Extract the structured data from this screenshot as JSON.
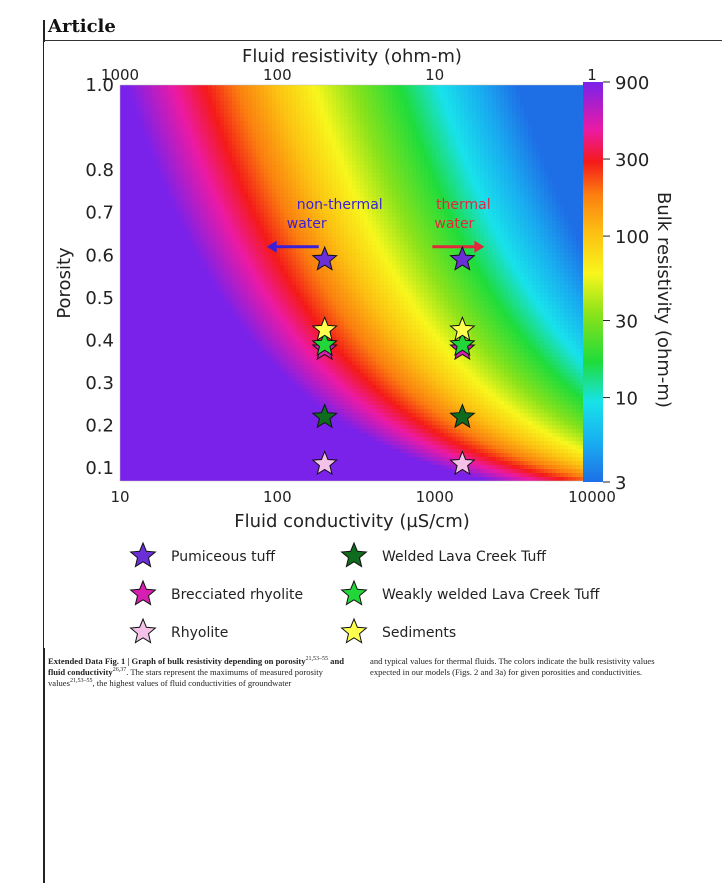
{
  "header": {
    "section": "Article"
  },
  "chart_data": {
    "type": "heatmap",
    "title": "",
    "x_axis": {
      "label": "Fluid conductivity (µS/cm)",
      "scale": "log",
      "range": [
        10,
        10000
      ],
      "ticks": [
        {
          "value": 10,
          "label": "10"
        },
        {
          "value": 100,
          "label": "100"
        },
        {
          "value": 1000,
          "label": "1000"
        },
        {
          "value": 10000,
          "label": "10000"
        }
      ]
    },
    "x_axis_top": {
      "label": "Fluid resistivity (ohm-m)",
      "scale": "log",
      "ticks": [
        {
          "value": 1000,
          "label": "1000"
        },
        {
          "value": 100,
          "label": "100"
        },
        {
          "value": 10,
          "label": "10"
        },
        {
          "value": 1,
          "label": "1"
        }
      ]
    },
    "y_axis": {
      "label": "Porosity",
      "range": [
        0.07,
        1.0
      ],
      "ticks": [
        {
          "value": 1.0,
          "label": "1.0"
        },
        {
          "value": 0.8,
          "label": "0.8"
        },
        {
          "value": 0.7,
          "label": "0.7"
        },
        {
          "value": 0.6,
          "label": "0.6"
        },
        {
          "value": 0.5,
          "label": "0.5"
        },
        {
          "value": 0.4,
          "label": "0.4"
        },
        {
          "value": 0.3,
          "label": "0.3"
        },
        {
          "value": 0.2,
          "label": "0.2"
        },
        {
          "value": 0.1,
          "label": "0.1"
        }
      ]
    },
    "colorbar": {
      "label": "Bulk resistivity (ohm-m)",
      "scale": "log",
      "range": [
        3,
        900
      ],
      "ticks": [
        {
          "value": 900,
          "label": "900"
        },
        {
          "value": 300,
          "label": "300"
        },
        {
          "value": 100,
          "label": "100"
        },
        {
          "value": 30,
          "label": "30"
        },
        {
          "value": 10,
          "label": "10"
        },
        {
          "value": 3,
          "label": "3"
        }
      ]
    },
    "annotations": [
      {
        "text_lines": [
          "non-thermal",
          "water"
        ],
        "color": "#3a1fd8",
        "direction": "left",
        "x": 200,
        "y": 0.62
      },
      {
        "text_lines": [
          "thermal",
          "water"
        ],
        "color": "#e2283c",
        "direction": "right",
        "x": 1500,
        "y": 0.62
      }
    ],
    "series": [
      {
        "name": "Pumiceous tuff",
        "color": "#6a2fd6",
        "points": [
          {
            "x": 200,
            "y": 0.59
          },
          {
            "x": 1500,
            "y": 0.59
          }
        ]
      },
      {
        "name": "Brecciated rhyolite",
        "color": "#d61fb0",
        "points": [
          {
            "x": 200,
            "y": 0.38
          },
          {
            "x": 1500,
            "y": 0.38
          }
        ]
      },
      {
        "name": "Rhyolite",
        "color": "#f4c2e8",
        "points": [
          {
            "x": 200,
            "y": 0.11
          },
          {
            "x": 1500,
            "y": 0.11
          }
        ]
      },
      {
        "name": "Welded Lava Creek Tuff",
        "color": "#0f6b1d",
        "points": [
          {
            "x": 200,
            "y": 0.22
          },
          {
            "x": 1500,
            "y": 0.22
          }
        ]
      },
      {
        "name": "Weakly welded Lava Creek Tuff",
        "color": "#22d63a",
        "points": [
          {
            "x": 200,
            "y": 0.39
          },
          {
            "x": 1500,
            "y": 0.39
          }
        ]
      },
      {
        "name": "Sediments",
        "color": "#ffff4d",
        "points": [
          {
            "x": 200,
            "y": 0.425
          },
          {
            "x": 1500,
            "y": 0.425
          }
        ]
      }
    ],
    "legend_order": [
      "Pumiceous tuff",
      "Welded Lava Creek Tuff",
      "Brecciated rhyolite",
      "Weakly welded Lava Creek Tuff",
      "Rhyolite",
      "Sediments"
    ]
  },
  "caption": {
    "label": "Extended Data Fig. 1 | Graph of bulk resistivity depending on porosity",
    "ref1": "21,53–55",
    "label2": " and fluid conductivity",
    "ref2": "26,37",
    "text1a": ". The stars represent the maximums of measured porosity values",
    "ref3": "21,53–55",
    "text1b": ", the highest values of fluid conductivities of groundwater",
    "text2": "and typical values for thermal fluids. The colors indicate the bulk resistivity values expected in our models (Figs. 2 and 3a) for given porosities and conductivities."
  }
}
